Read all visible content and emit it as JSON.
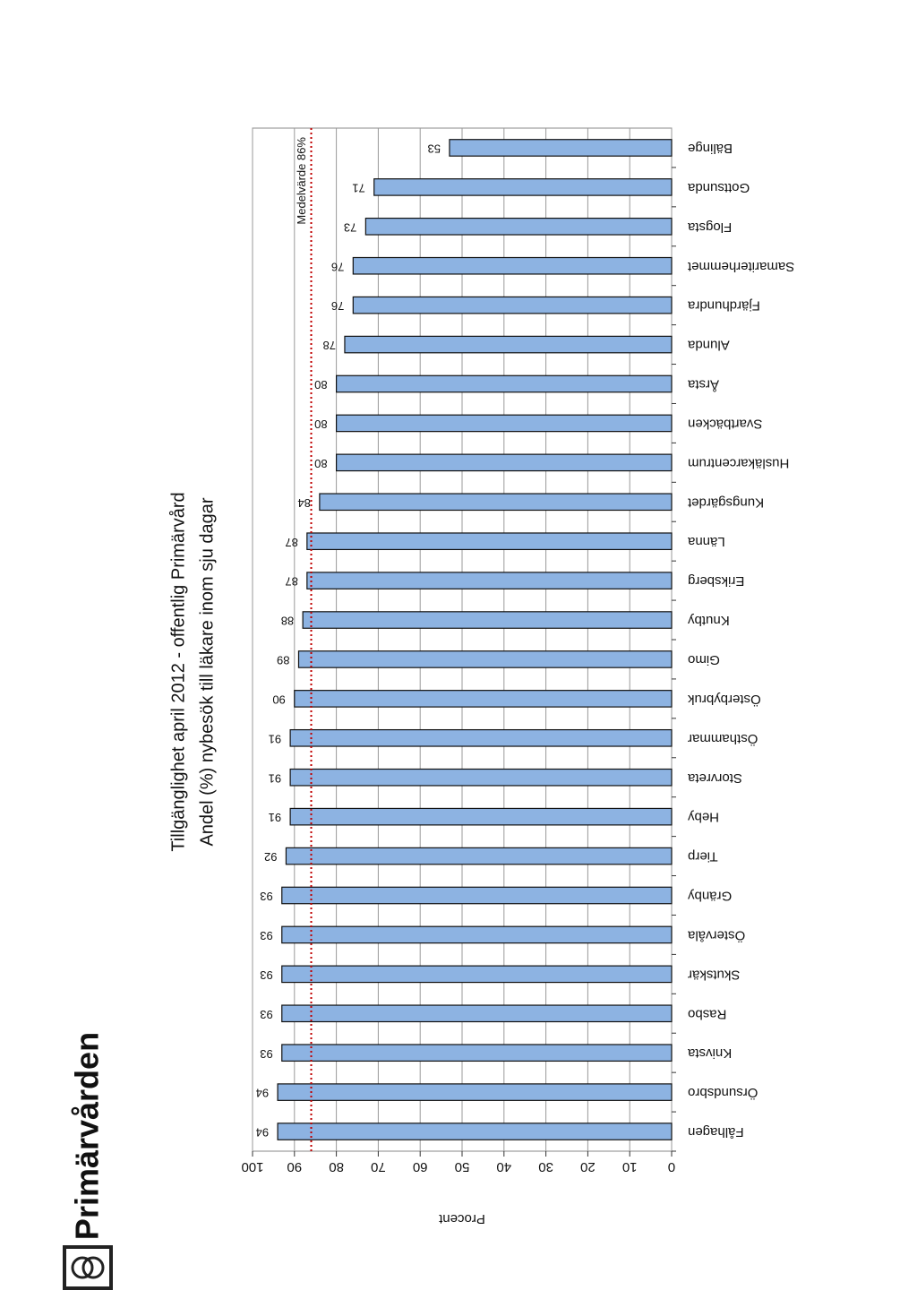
{
  "header": {
    "logo": "Primärvården"
  },
  "chart_data": {
    "type": "bar",
    "title": "Tillgänglighet april 2012 - offentlig Primärvård",
    "subtitle": "Andel (%) nybesök till läkare inom sju dagar",
    "y_label": "Procent",
    "categories": [
      "Fålhagen",
      "Örsundsbro",
      "Knivsta",
      "Rasbo",
      "Skutskär",
      "Östervåla",
      "Gränby",
      "Tierp",
      "Heby",
      "Storvreta",
      "Östhammar",
      "Österbybruk",
      "Gimo",
      "Knutby",
      "Eriksberg",
      "Länna",
      "Kungsgärdet",
      "Husläkarcentrum",
      "Svartbäcken",
      "Årsta",
      "Alunda",
      "Fjärdhundra",
      "Samariterhemmet",
      "Flogsta",
      "Gottsunda",
      "Bälinge"
    ],
    "values": [
      94,
      94,
      93,
      93,
      93,
      93,
      93,
      92,
      91,
      91,
      91,
      90,
      89,
      88,
      87,
      87,
      84,
      80,
      80,
      80,
      78,
      76,
      76,
      73,
      71,
      53
    ],
    "color": "#8db3e2",
    "ylim": [
      0,
      100
    ],
    "yticks": [
      0,
      10,
      20,
      30,
      40,
      50,
      60,
      70,
      80,
      90,
      100
    ],
    "grid": true,
    "mean": {
      "label": "Medelvärde 86%",
      "value": 86,
      "color": "#c00000"
    }
  }
}
